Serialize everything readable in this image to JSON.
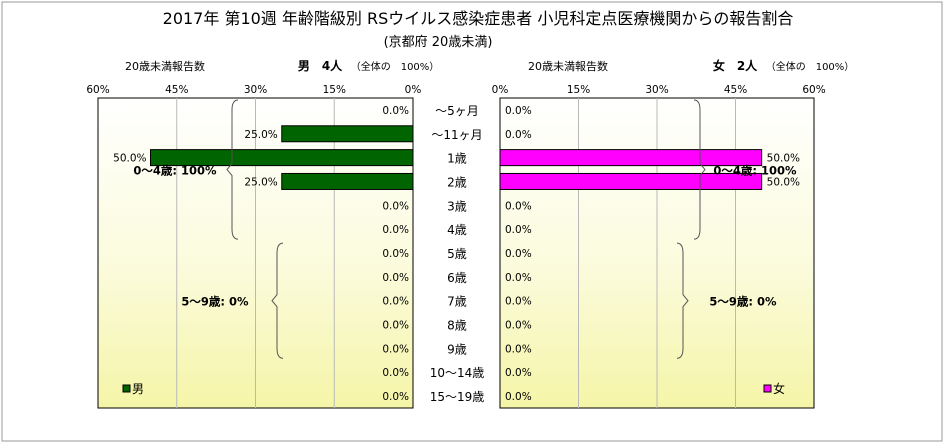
{
  "title": "2017年 第10週 年齢階級別 RSウイルス感染症患者 小児科定点医療機関からの報告割合",
  "subtitle": "(京都府 20歳未満)",
  "chart_data": {
    "type": "bar",
    "orientation": "horizontal-butterfly",
    "title": "2017年 第10週 年齢階級別 RSウイルス感染症患者 小児科定点医療機関からの報告割合",
    "subtitle": "(京都府 20歳未満)",
    "categories": [
      "～5ヶ月",
      "～11ヶ月",
      "1歳",
      "2歳",
      "3歳",
      "4歳",
      "5歳",
      "6歳",
      "7歳",
      "8歳",
      "9歳",
      "10～14歳",
      "15～19歳"
    ],
    "xlim": [
      0,
      60
    ],
    "ticks": [
      "60%",
      "45%",
      "30%",
      "15%",
      "0%"
    ],
    "ticks_right": [
      "0%",
      "15%",
      "30%",
      "45%",
      "60%"
    ],
    "grid": true,
    "series": [
      {
        "name": "男",
        "side": "left",
        "color": "#006400",
        "header": "20歳未満報告数",
        "count_label": "男　4人",
        "total_note": "（全体の　100%）",
        "values": [
          0,
          25,
          50,
          25,
          0,
          0,
          0,
          0,
          0,
          0,
          0,
          0,
          0
        ],
        "labels": [
          "0.0%",
          "25.0%",
          "50.0%",
          "25.0%",
          "0.0%",
          "0.0%",
          "0.0%",
          "0.0%",
          "0.0%",
          "0.0%",
          "0.0%",
          "0.0%",
          "0.0%"
        ],
        "groups": [
          {
            "label": "0～4歳: 100%",
            "from": 0,
            "to": 5
          },
          {
            "label": "5～9歳: 0%",
            "from": 6,
            "to": 10
          }
        ]
      },
      {
        "name": "女",
        "side": "right",
        "color": "#ff00ff",
        "header": "20歳未満報告数",
        "count_label": "女　2人",
        "total_note": "（全体の　100%）",
        "values": [
          0,
          0,
          50,
          50,
          0,
          0,
          0,
          0,
          0,
          0,
          0,
          0,
          0
        ],
        "labels": [
          "0.0%",
          "0.0%",
          "50.0%",
          "50.0%",
          "0.0%",
          "0.0%",
          "0.0%",
          "0.0%",
          "0.0%",
          "0.0%",
          "0.0%",
          "0.0%",
          "0.0%"
        ],
        "groups": [
          {
            "label": "0～4歳: 100%",
            "from": 0,
            "to": 5
          },
          {
            "label": "5～9歳: 0%",
            "from": 6,
            "to": 10
          }
        ]
      }
    ]
  }
}
